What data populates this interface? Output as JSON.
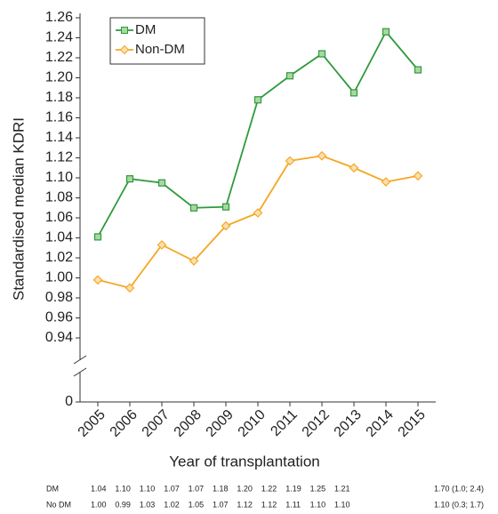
{
  "chart_data": {
    "type": "line",
    "categories": [
      "2005",
      "2006",
      "2007",
      "2008",
      "2009",
      "2010",
      "2011",
      "2012",
      "2013",
      "2014",
      "2015"
    ],
    "series": [
      {
        "name": "DM",
        "color": "#2e9a3c",
        "marker": "square",
        "marker_fill": "#a8d8a0",
        "values": [
          1.041,
          1.099,
          1.095,
          1.07,
          1.071,
          1.178,
          1.202,
          1.224,
          1.185,
          1.246,
          1.208
        ]
      },
      {
        "name": "Non-DM",
        "color": "#f5a623",
        "marker": "diamond",
        "marker_fill": "#fde0b0",
        "values": [
          0.998,
          0.99,
          1.033,
          1.017,
          1.052,
          1.065,
          1.117,
          1.122,
          1.11,
          1.096,
          1.102
        ]
      }
    ],
    "ylabel": "Standardised median KDRI",
    "xlabel": "Year of transplantation",
    "ylim": [
      0,
      1.26
    ],
    "y_break": [
      0,
      0.92
    ],
    "yticks": [
      0,
      0.94,
      0.96,
      0.98,
      {
        "value": 1.0,
        "label": "1.00"
      },
      1.02,
      1.04,
      1.06,
      1.08,
      {
        "value": 1.1,
        "label": "1.10"
      },
      1.12,
      1.14,
      1.16,
      1.18,
      {
        "value": 1.2,
        "label": "1.20"
      },
      1.22,
      1.24,
      1.26
    ],
    "legend": "upper left"
  },
  "table": {
    "rows": [
      {
        "label": "DM",
        "cells": [
          "1.04",
          "1.10",
          "1.10",
          "1.07",
          "1.07",
          "1.18",
          "1.20",
          "1.22",
          "1.19",
          "1.25",
          "1.21",
          "1.70 (1.0; 2.4)"
        ]
      },
      {
        "label": "No DM",
        "cells": [
          "1.00",
          "0.99",
          "1.03",
          "1.02",
          "1.05",
          "1.07",
          "1.12",
          "1.12",
          "1.11",
          "1.10",
          "1.10",
          "1.10 (0.3; 1.7)"
        ]
      }
    ]
  }
}
